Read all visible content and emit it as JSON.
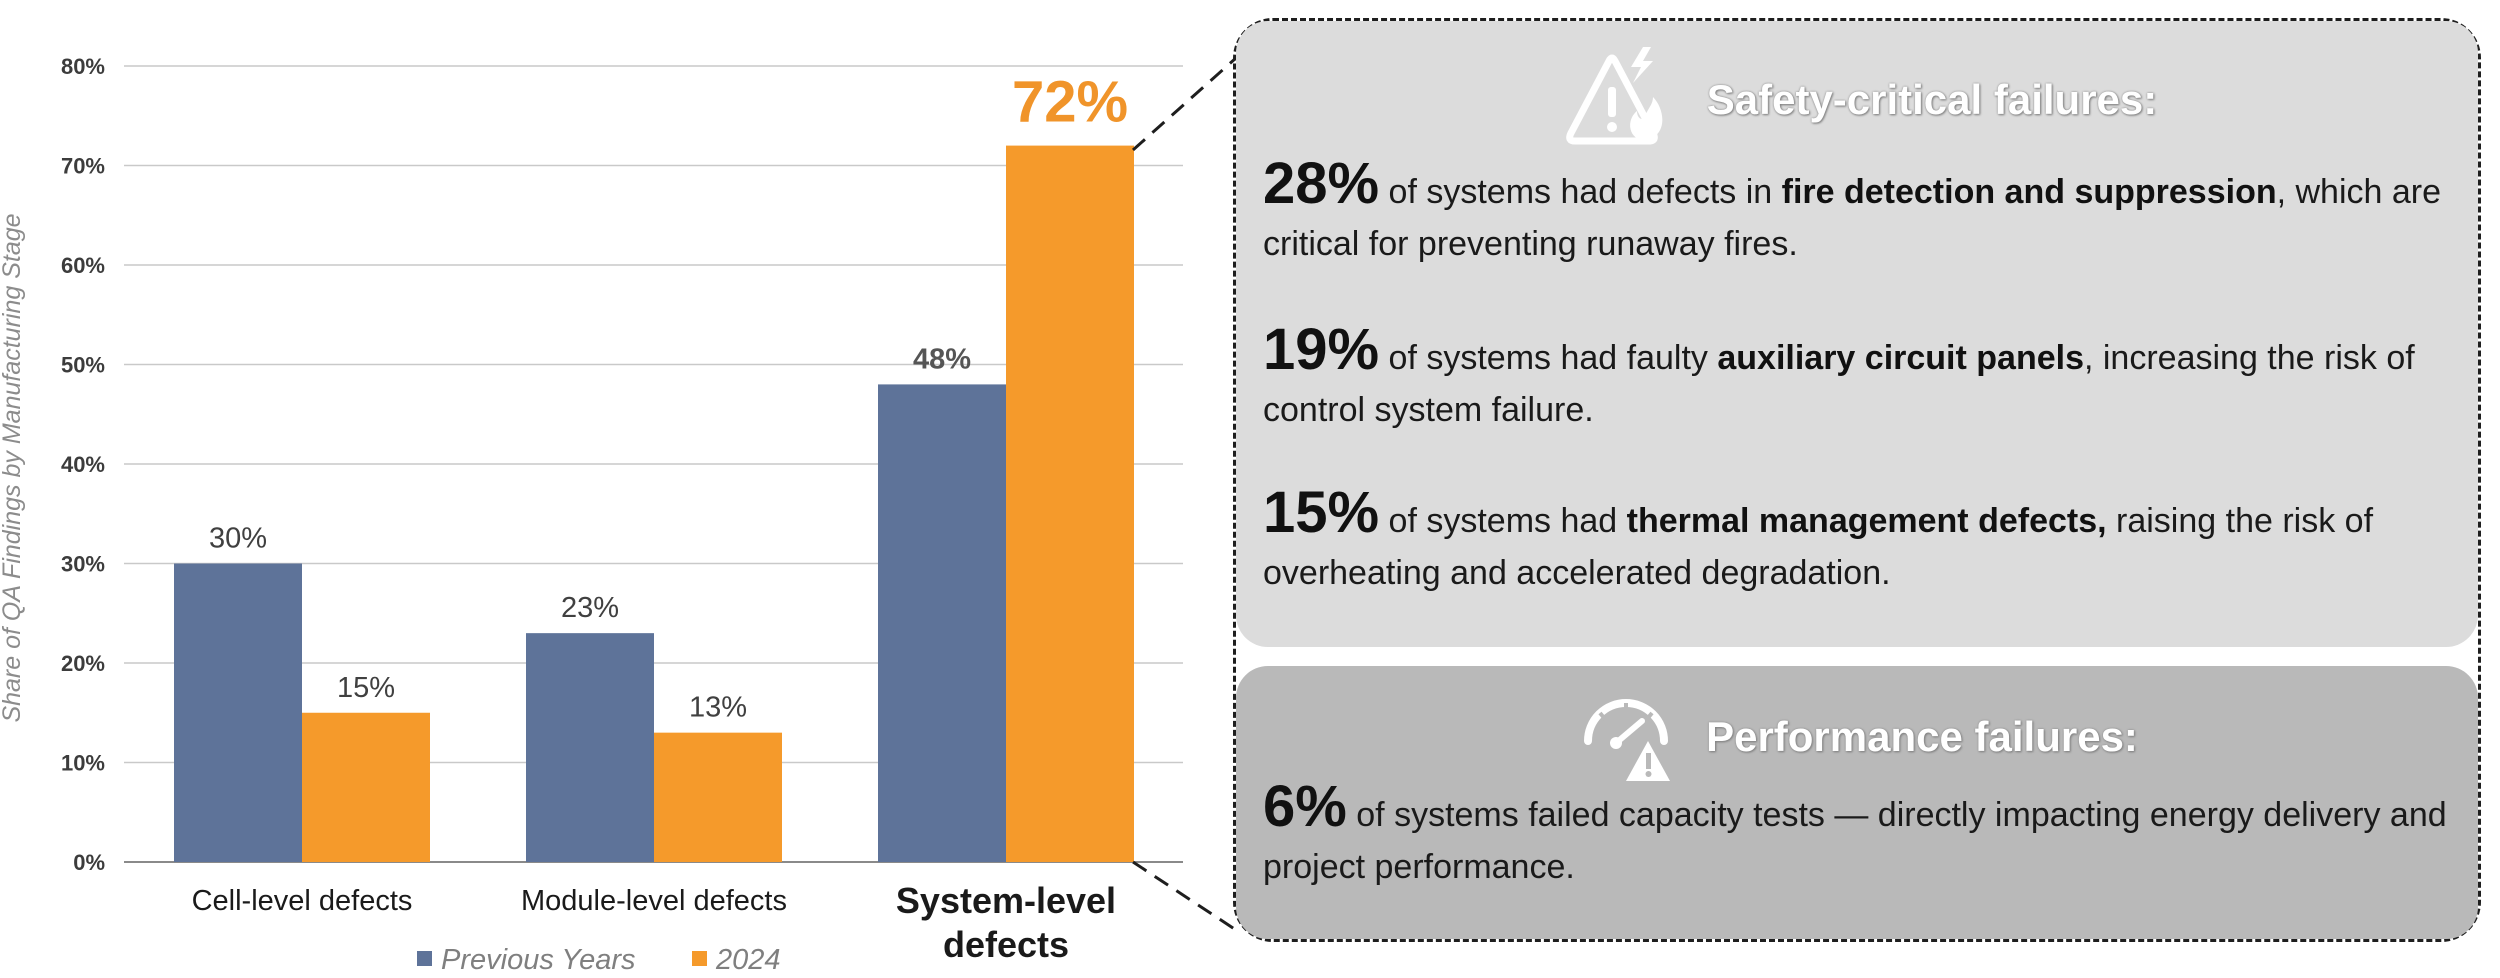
{
  "chart_data": {
    "type": "bar",
    "categories": [
      "Cell-level defects",
      "Module-level defects",
      "System-level defects"
    ],
    "category_lines": [
      [
        "Cell-level defects"
      ],
      [
        "Module-level defects"
      ],
      [
        "System-level",
        "defects"
      ]
    ],
    "series": [
      {
        "name": "Previous Years",
        "values": [
          30,
          23,
          48
        ],
        "labels": [
          "30%",
          "23%",
          "48%"
        ]
      },
      {
        "name": "2024",
        "values": [
          15,
          13,
          72
        ],
        "labels": [
          "15%",
          "13%",
          "72%"
        ]
      }
    ],
    "ylabel": "Share of QA Findings by Manufacturing Stage",
    "ylim": [
      0,
      80
    ],
    "yticks": [
      0,
      10,
      20,
      30,
      40,
      50,
      60,
      70,
      80
    ],
    "ytick_labels": [
      "0%",
      "10%",
      "20%",
      "30%",
      "40%",
      "50%",
      "60%",
      "70%",
      "80%"
    ],
    "grid": true,
    "legend_position": "bottom",
    "colors": {
      "Previous Years": "#5e7399",
      "2024": "#f59a2b"
    }
  },
  "callout": {
    "safety": {
      "title": "Safety-critical failures:",
      "icon": "warning-fire-icon",
      "items": [
        {
          "pct": "28%",
          "pre": " of systems had defects in ",
          "bold": "fire detection and suppression",
          "post": ", which are critical for preventing runaway fires."
        },
        {
          "pct": "19%",
          "pre": " of systems had faulty ",
          "bold": "auxiliary circuit panels",
          "post": ", increasing the risk of control system failure."
        },
        {
          "pct": "15%",
          "pre": " of systems had ",
          "bold": "thermal management defects,",
          "post": " raising the risk of overheating and accelerated degradation."
        }
      ]
    },
    "performance": {
      "title": "Performance failures:",
      "icon": "gauge-warning-icon",
      "items": [
        {
          "pct": "6%",
          "pre": " of systems failed capacity tests — directly impacting energy delivery and project performance.",
          "bold": "",
          "post": ""
        }
      ]
    }
  }
}
